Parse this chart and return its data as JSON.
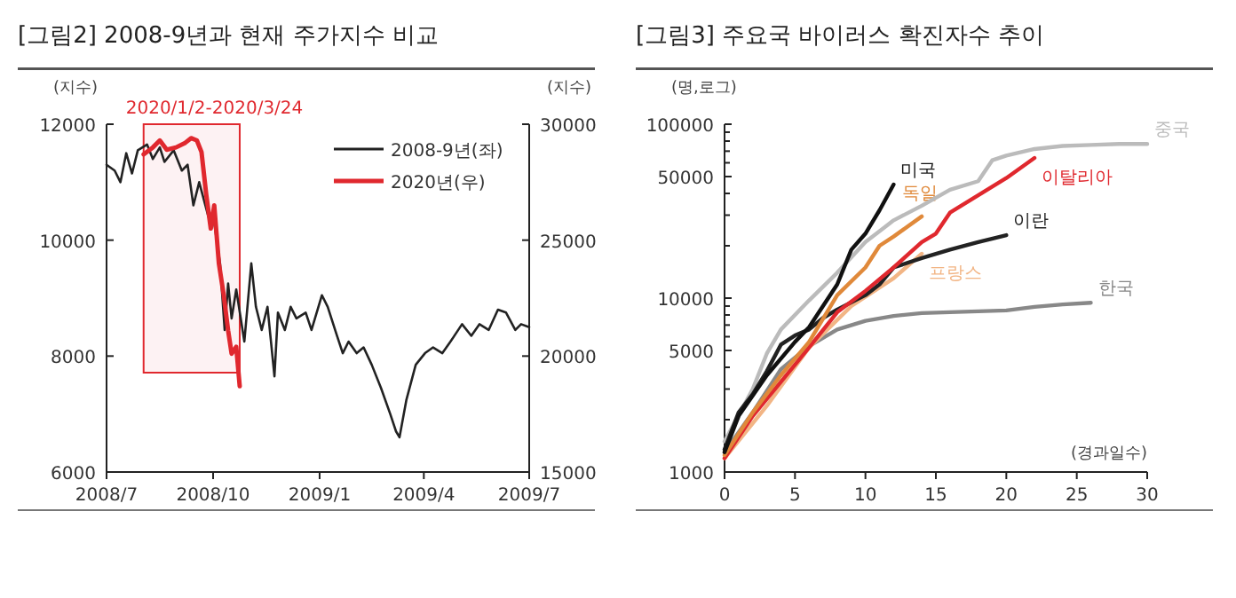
{
  "chart_data": [
    {
      "type": "line",
      "title": "[그림2] 2008-9년과 현재 주가지수 비교",
      "ylabel": "(지수)",
      "y2label": "(지수)",
      "bands": [
        {
          "axis": "x",
          "from": "2008-08-02",
          "to": "2008-10-24",
          "label": "2020/1/2-2020/3/24",
          "color": "#e0282e"
        }
      ],
      "legend": "top right",
      "grid": false,
      "xlim": [
        "2008-07-01",
        "2009-07-01"
      ],
      "xticks": [
        {
          "value": "2008-07-01",
          "label": "2008/7"
        },
        {
          "value": "2008-10-01",
          "label": "2008/10"
        },
        {
          "value": "2009-01-01",
          "label": "2009/1"
        },
        {
          "value": "2009-04-01",
          "label": "2009/4"
        },
        {
          "value": "2009-07-01",
          "label": "2009/7"
        }
      ],
      "ylim": [
        6000,
        12000
      ],
      "yticks": [
        6000,
        8000,
        10000,
        12000
      ],
      "y2lim": [
        15000,
        30000
      ],
      "y2ticks": [
        15000,
        20000,
        25000,
        30000
      ],
      "series": [
        {
          "name": "2008-9년(좌)",
          "color": "#222222",
          "x": [
            "2008-07-01",
            "2008-07-08",
            "2008-07-13",
            "2008-07-18",
            "2008-07-23",
            "2008-07-28",
            "2008-08-05",
            "2008-08-10",
            "2008-08-16",
            "2008-08-20",
            "2008-08-28",
            "2008-09-04",
            "2008-09-09",
            "2008-09-14",
            "2008-09-19",
            "2008-09-27",
            "2008-10-02",
            "2008-10-07",
            "2008-10-11",
            "2008-10-14",
            "2008-10-17",
            "2008-10-21",
            "2008-10-28",
            "2008-11-03",
            "2008-11-07",
            "2008-11-12",
            "2008-11-17",
            "2008-11-23",
            "2008-11-26",
            "2008-12-02",
            "2008-12-07",
            "2008-12-12",
            "2008-12-20",
            "2008-12-25",
            "2009-01-03",
            "2009-01-08",
            "2009-01-16",
            "2009-01-21",
            "2009-01-26",
            "2009-02-02",
            "2009-02-08",
            "2009-02-15",
            "2009-02-23",
            "2009-03-03",
            "2009-03-08",
            "2009-03-11",
            "2009-03-17",
            "2009-03-25",
            "2009-04-02",
            "2009-04-09",
            "2009-04-17",
            "2009-04-24",
            "2009-05-04",
            "2009-05-12",
            "2009-05-19",
            "2009-05-27",
            "2009-06-04",
            "2009-06-11",
            "2009-06-19",
            "2009-06-24",
            "2009-07-01"
          ],
          "values": [
            11300,
            11200,
            11000,
            11500,
            11150,
            11550,
            11650,
            11400,
            11600,
            11350,
            11550,
            11200,
            11300,
            10600,
            11000,
            10400,
            10300,
            9600,
            8450,
            9250,
            8650,
            9150,
            8250,
            9600,
            8850,
            8450,
            8850,
            7650,
            8750,
            8450,
            8850,
            8650,
            8750,
            8450,
            9050,
            8850,
            8350,
            8050,
            8250,
            8050,
            8150,
            7850,
            7450,
            7000,
            6700,
            6600,
            7250,
            7850,
            8050,
            8150,
            8050,
            8250,
            8550,
            8350,
            8550,
            8450,
            8800,
            8750,
            8450,
            8550,
            8500
          ]
        },
        {
          "name": "2020년(우)",
          "color": "#e0282e",
          "axis": "y2",
          "x": [
            "2008-08-02",
            "2008-08-10",
            "2008-08-16",
            "2008-08-22",
            "2008-08-30",
            "2008-09-07",
            "2008-09-12",
            "2008-09-17",
            "2008-09-21",
            "2008-09-25",
            "2008-09-29",
            "2008-10-02",
            "2008-10-06",
            "2008-10-10",
            "2008-10-14",
            "2008-10-17",
            "2008-10-21",
            "2008-10-24"
          ],
          "values": [
            28700,
            29000,
            29300,
            28900,
            29000,
            29200,
            29400,
            29300,
            28800,
            27000,
            25500,
            26500,
            24000,
            22700,
            21100,
            20100,
            20400,
            18700
          ]
        }
      ]
    },
    {
      "type": "line",
      "title": "[그림3] 주요국 바이러스 확진자수 추이",
      "xlabel": "(경과일수)",
      "ylabel": "(명,로그)",
      "log": "y",
      "grid": false,
      "xlim": [
        0,
        30
      ],
      "xticks": [
        0,
        5,
        10,
        15,
        20,
        25,
        30
      ],
      "ylim": [
        1000,
        100000
      ],
      "yticks": [
        1000,
        {
          "value": 2000,
          "label": null
        },
        {
          "value": 3000,
          "label": null
        },
        {
          "value": 4000,
          "label": null
        },
        5000,
        {
          "value": 6000,
          "label": null
        },
        {
          "value": 7000,
          "label": null
        },
        {
          "value": 8000,
          "label": null
        },
        {
          "value": 9000,
          "label": null
        },
        10000,
        {
          "value": 20000,
          "label": null
        },
        {
          "value": 30000,
          "label": null
        },
        {
          "value": 40000,
          "label": null
        },
        50000,
        {
          "value": 60000,
          "label": null
        },
        {
          "value": 70000,
          "label": null
        },
        {
          "value": 80000,
          "label": null
        },
        {
          "value": 90000,
          "label": null
        },
        100000
      ],
      "series": [
        {
          "name": "중국",
          "color": "#bbbbbb",
          "x": [
            0,
            2,
            3,
            4,
            6,
            8,
            10,
            12,
            14,
            16,
            18,
            19,
            20,
            22,
            24,
            26,
            28,
            30
          ],
          "values": [
            1500,
            3000,
            4800,
            6600,
            9700,
            14000,
            21000,
            28000,
            34000,
            42000,
            47000,
            62000,
            66000,
            72000,
            75000,
            76000,
            77000,
            77000
          ]
        },
        {
          "name": "한국",
          "color": "#888888",
          "x": [
            0,
            2,
            4,
            6,
            8,
            10,
            12,
            14,
            16,
            20,
            22,
            24,
            26
          ],
          "values": [
            1300,
            2200,
            3900,
            5300,
            6600,
            7400,
            7900,
            8200,
            8300,
            8500,
            8900,
            9200,
            9400
          ]
        },
        {
          "name": "프랑스",
          "color": "#f2b585",
          "x": [
            0,
            3,
            6,
            9,
            12,
            14
          ],
          "values": [
            1200,
            2400,
            5200,
            9000,
            13000,
            18000
          ]
        },
        {
          "name": "이란",
          "color": "#222222",
          "x": [
            0,
            1,
            2,
            3,
            4,
            5,
            6,
            7,
            8,
            10,
            11,
            12,
            14,
            16,
            18,
            20
          ],
          "values": [
            1350,
            2200,
            2800,
            3800,
            5400,
            6100,
            6600,
            7700,
            8600,
            10400,
            12000,
            15000,
            17000,
            19000,
            21000,
            23000
          ]
        },
        {
          "name": "이탈리아",
          "color": "#e0282e",
          "x": [
            0,
            2,
            4,
            6,
            8,
            10,
            12,
            14,
            15,
            16,
            18,
            20,
            22
          ],
          "values": [
            1200,
            2100,
            3300,
            5200,
            8300,
            11000,
            15000,
            21000,
            23500,
            31000,
            39000,
            49000,
            64000
          ]
        },
        {
          "name": "독일",
          "color": "#e0893a",
          "x": [
            0,
            2,
            4,
            6,
            8,
            10,
            11,
            12,
            14
          ],
          "values": [
            1250,
            2200,
            3600,
            5600,
            10400,
            15000,
            20000,
            22600,
            29500
          ]
        },
        {
          "name": "미국",
          "color": "#111111",
          "x": [
            0,
            1,
            3,
            5,
            6,
            8,
            9,
            10,
            11,
            12
          ],
          "values": [
            1300,
            2100,
            3600,
            5600,
            6800,
            12000,
            19000,
            23500,
            32000,
            45000
          ]
        }
      ]
    }
  ]
}
